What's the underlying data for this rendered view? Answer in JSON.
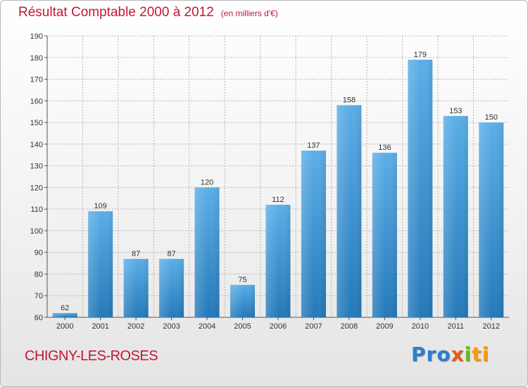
{
  "title": "Résultat Comptable 2000 à 2012",
  "subtitle": "(en milliers d'€)",
  "city": "CHIGNY-LES-ROSES",
  "logo": {
    "parts": [
      "Pro",
      "x",
      "i",
      "ti"
    ]
  },
  "colors": {
    "title": "#c4163a",
    "bar_light": "#5baee8",
    "bar_dark": "#2479b9",
    "grid": "#b5b5b5"
  },
  "chart_data": {
    "type": "bar",
    "title": "Résultat Comptable 2000 à 2012",
    "subtitle": "(en milliers d'€)",
    "xlabel": "",
    "ylabel": "",
    "categories": [
      "2000",
      "2001",
      "2002",
      "2003",
      "2004",
      "2005",
      "2006",
      "2007",
      "2008",
      "2009",
      "2010",
      "2011",
      "2012"
    ],
    "values": [
      62,
      109,
      87,
      87,
      120,
      75,
      112,
      137,
      158,
      136,
      179,
      153,
      150
    ],
    "ylim": [
      60,
      190
    ],
    "yticks": [
      60,
      70,
      80,
      90,
      100,
      110,
      120,
      130,
      140,
      150,
      160,
      170,
      180,
      190
    ],
    "grid": true,
    "legend": "none"
  }
}
